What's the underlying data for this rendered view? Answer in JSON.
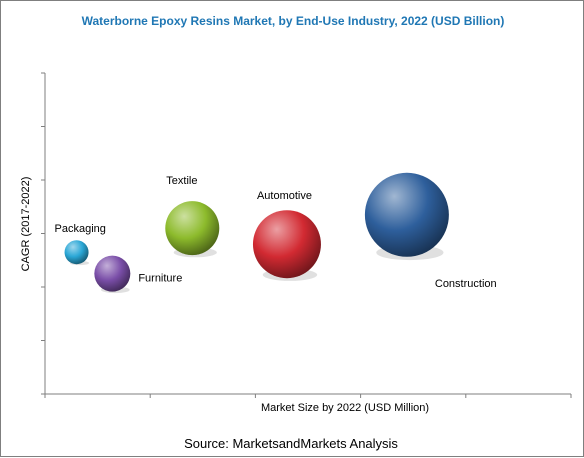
{
  "chart_data": {
    "type": "scatter",
    "subtype": "bubble",
    "title": "Waterborne Epoxy Resins Market, by End-Use Industry, 2022 (USD Billion)",
    "xlabel": "Market Size by 2022 (USD Million)",
    "ylabel": "CAGR (2017-2022)",
    "grid": false,
    "axis_tick_labels": "none",
    "series": [
      {
        "name": "Packaging",
        "x": 1.5,
        "y": 5.3,
        "size": 12,
        "color": "#2aa7d6"
      },
      {
        "name": "Furniture",
        "x": 3.2,
        "y": 4.5,
        "size": 18,
        "color": "#7a4ea8"
      },
      {
        "name": "Textile",
        "x": 7.0,
        "y": 6.2,
        "size": 27,
        "color": "#8dbb2c"
      },
      {
        "name": "Automotive",
        "x": 11.5,
        "y": 5.6,
        "size": 34,
        "color": "#d22a32"
      },
      {
        "name": "Construction",
        "x": 17.2,
        "y": 6.7,
        "size": 42,
        "color": "#2e5f9c"
      }
    ],
    "xlim": [
      0,
      25
    ],
    "ylim": [
      0,
      12
    ]
  },
  "source": "Source: MarketsandMarkets Analysis"
}
